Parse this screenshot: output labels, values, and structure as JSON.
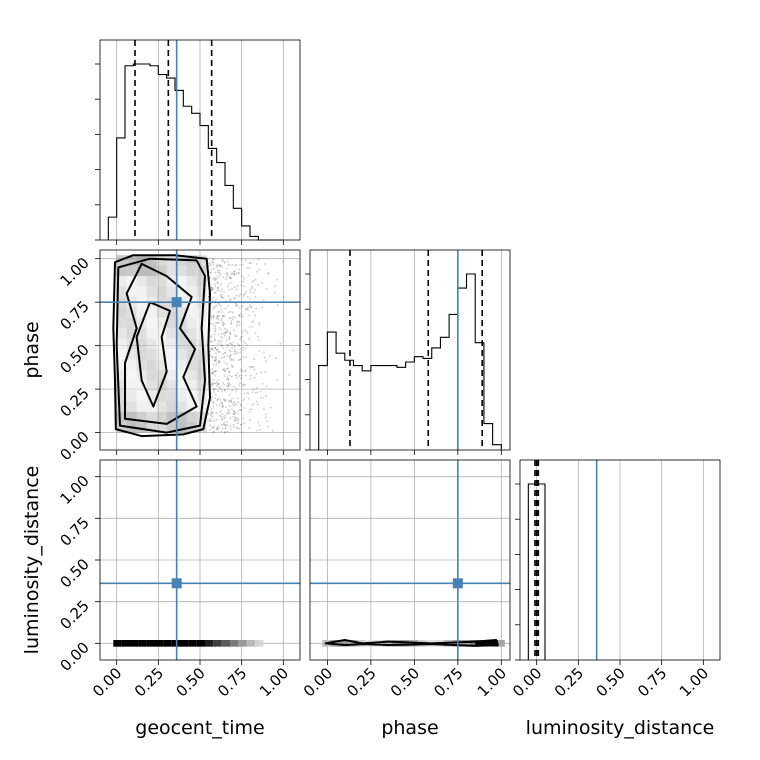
{
  "chart_data": {
    "type": "corner",
    "parameters": [
      "geocent_time",
      "phase",
      "luminosity_distance"
    ],
    "axis_ranges": {
      "geocent_time": [
        -0.1,
        1.1
      ],
      "phase": [
        -0.1,
        1.05
      ],
      "luminosity_distance": [
        -0.1,
        1.1
      ]
    },
    "tick_labels": [
      "0.00",
      "0.25",
      "0.50",
      "0.75",
      "1.00"
    ],
    "tick_values": [
      0,
      0.25,
      0.5,
      0.75,
      1.0
    ],
    "truths": {
      "geocent_time": 0.36,
      "phase": 0.75,
      "luminosity_distance": 0.36
    },
    "truth_color": "#4682b4",
    "grid": true,
    "histograms": {
      "geocent_time": {
        "bin_edges": [
          -0.05,
          0.0,
          0.05,
          0.1,
          0.15,
          0.2,
          0.25,
          0.3,
          0.35,
          0.4,
          0.45,
          0.5,
          0.55,
          0.6,
          0.65,
          0.7,
          0.75,
          0.8,
          0.85,
          0.9,
          0.95,
          1.0
        ],
        "counts": [
          0.13,
          0.58,
          0.99,
          1.0,
          1.0,
          0.99,
          0.94,
          0.92,
          0.85,
          0.76,
          0.72,
          0.65,
          0.52,
          0.44,
          0.31,
          0.18,
          0.08,
          0.02,
          0,
          0,
          0
        ],
        "quantile_lines": [
          0.11,
          0.31,
          0.57
        ]
      },
      "phase": {
        "bin_edges": [
          -0.05,
          0.0,
          0.05,
          0.1,
          0.15,
          0.2,
          0.25,
          0.3,
          0.35,
          0.4,
          0.45,
          0.5,
          0.55,
          0.6,
          0.65,
          0.7,
          0.75,
          0.8,
          0.85,
          0.9,
          0.95,
          1.0
        ],
        "counts": [
          0.48,
          0.67,
          0.55,
          0.51,
          0.48,
          0.45,
          0.48,
          0.48,
          0.48,
          0.47,
          0.5,
          0.53,
          0.52,
          0.58,
          0.64,
          0.77,
          0.92,
          1.0,
          0.61,
          0.15,
          0.03
        ],
        "quantile_lines": [
          0.13,
          0.58,
          0.89
        ]
      },
      "luminosity_distance": {
        "bin_edges": [
          -0.05,
          0.0,
          0.05
        ],
        "counts": [
          1.0,
          1.0
        ],
        "quantile_lines": [
          -0.01,
          0.0,
          0.01
        ]
      }
    },
    "xlabels": [
      "geocent_time",
      "phase",
      "luminosity_distance"
    ],
    "ylabels": [
      "",
      "phase",
      "luminosity_distance"
    ]
  }
}
